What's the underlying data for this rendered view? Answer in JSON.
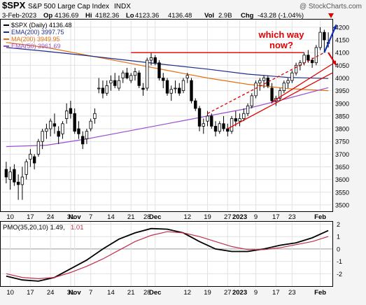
{
  "header": {
    "symbol": "$SPX",
    "name": "S&P 500 Large Cap Index",
    "exchange": "INDX",
    "watermark": "@ StockCharts.com",
    "date": "3-Feb-2023",
    "open_label": "Op",
    "open": "4136.69",
    "high_label": "Hi",
    "high": "4182.36",
    "low_label": "Lo",
    "low": "4123.36",
    "close": "4136.48",
    "vol_label": "Vol",
    "vol": "2.9B",
    "chg_label": "Chg",
    "chg": "-43.28 (-1.04%)"
  },
  "legend": [
    {
      "label": "$SPX (Daily) 4136.48",
      "color": "#000000"
    },
    {
      "label": "EMA(200) 3997.75",
      "color": "#1f2d8a"
    },
    {
      "label": "MA(200) 3949.95",
      "color": "#e07010"
    },
    {
      "label": "EMA(50) 3961.69",
      "color": "#9a4fd0"
    }
  ],
  "annotation": {
    "line1": "which way",
    "line2": "now?",
    "color": "#e00000"
  },
  "colors": {
    "ema200": "#1f2d8a",
    "ma200": "#e07010",
    "ema50": "#9a4fd0",
    "resistance": "#e00000",
    "up": "#ffffff",
    "down": "#000000",
    "pmo": "#000000",
    "signal": "#c0304a",
    "arrow_up": "#1030c0",
    "arrow_down": "#e00000"
  },
  "chart_data": [
    {
      "type": "candlestick",
      "title": "$SPX (Daily)",
      "ylim": [
        3475,
        4230
      ],
      "y_ticks": [
        3500,
        3550,
        3600,
        3650,
        3700,
        3750,
        3800,
        3850,
        3900,
        3950,
        4000,
        4050,
        4100,
        4150,
        4200
      ],
      "x_ticks": [
        {
          "label": "10",
          "index": 1
        },
        {
          "label": "17",
          "index": 6
        },
        {
          "label": "24",
          "index": 11
        },
        {
          "label": "31",
          "index": 16
        },
        {
          "label": "Nov",
          "index": 17
        },
        {
          "label": "7",
          "index": 21
        },
        {
          "label": "14",
          "index": 26
        },
        {
          "label": "21",
          "index": 31
        },
        {
          "label": "28",
          "index": 35
        },
        {
          "label": "Dec",
          "index": 37
        },
        {
          "label": "12",
          "index": 45
        },
        {
          "label": "19",
          "index": 50
        },
        {
          "label": "27",
          "index": 55
        },
        {
          "label": "2023",
          "index": 58
        },
        {
          "label": "9",
          "index": 62
        },
        {
          "label": "17",
          "index": 67
        },
        {
          "label": "23",
          "index": 71
        },
        {
          "label": "Feb",
          "index": 78
        }
      ],
      "n": 81,
      "ohlc": [
        [
          3640,
          3670,
          3585,
          3610
        ],
        [
          3600,
          3650,
          3560,
          3630
        ],
        [
          3640,
          3660,
          3575,
          3590
        ],
        [
          3590,
          3620,
          3520,
          3580
        ],
        [
          3580,
          3650,
          3520,
          3610
        ],
        [
          3620,
          3680,
          3600,
          3670
        ],
        [
          3680,
          3720,
          3650,
          3700
        ],
        [
          3690,
          3700,
          3640,
          3665
        ],
        [
          3700,
          3760,
          3690,
          3750
        ],
        [
          3750,
          3800,
          3720,
          3790
        ],
        [
          3790,
          3820,
          3760,
          3800
        ],
        [
          3800,
          3840,
          3770,
          3830
        ],
        [
          3820,
          3860,
          3780,
          3810
        ],
        [
          3790,
          3810,
          3740,
          3770
        ],
        [
          3780,
          3830,
          3760,
          3820
        ],
        [
          3840,
          3900,
          3820,
          3870
        ],
        [
          3880,
          3910,
          3840,
          3860
        ],
        [
          3860,
          3880,
          3780,
          3790
        ],
        [
          3800,
          3830,
          3760,
          3780
        ],
        [
          3770,
          3790,
          3720,
          3740
        ],
        [
          3760,
          3800,
          3740,
          3790
        ],
        [
          3800,
          3840,
          3790,
          3830
        ],
        [
          3840,
          3880,
          3820,
          3860
        ],
        [
          3960,
          4000,
          3940,
          3960
        ],
        [
          3960,
          3990,
          3920,
          3940
        ],
        [
          3940,
          3990,
          3930,
          3970
        ],
        [
          3980,
          4010,
          3950,
          3990
        ],
        [
          3990,
          4020,
          3960,
          3970
        ],
        [
          3960,
          4010,
          3950,
          3990
        ],
        [
          4000,
          4030,
          3980,
          4020
        ],
        [
          4020,
          4040,
          3995,
          4000
        ],
        [
          3990,
          4020,
          3980,
          4010
        ],
        [
          4010,
          4040,
          3990,
          4025
        ],
        [
          4020,
          4030,
          3960,
          3970
        ],
        [
          3960,
          3980,
          3930,
          3955
        ],
        [
          3960,
          4080,
          3950,
          4070
        ],
        [
          4070,
          4100,
          4050,
          4080
        ],
        [
          4080,
          4090,
          4050,
          4060
        ],
        [
          4060,
          4070,
          3990,
          4000
        ],
        [
          4000,
          4020,
          3960,
          3990
        ],
        [
          3990,
          4000,
          3930,
          3940
        ],
        [
          3940,
          3970,
          3910,
          3955
        ],
        [
          3960,
          3990,
          3940,
          3960
        ],
        [
          3960,
          3980,
          3930,
          3940
        ],
        [
          3950,
          4000,
          3940,
          3990
        ],
        [
          4000,
          4020,
          3980,
          4010
        ],
        [
          3990,
          4000,
          3900,
          3910
        ],
        [
          3910,
          3920,
          3870,
          3880
        ],
        [
          3880,
          3890,
          3790,
          3810
        ],
        [
          3810,
          3840,
          3780,
          3820
        ],
        [
          3830,
          3870,
          3810,
          3850
        ],
        [
          3850,
          3860,
          3800,
          3810
        ],
        [
          3810,
          3830,
          3770,
          3790
        ],
        [
          3790,
          3830,
          3780,
          3820
        ],
        [
          3820,
          3850,
          3790,
          3800
        ],
        [
          3800,
          3820,
          3770,
          3790
        ],
        [
          3790,
          3850,
          3780,
          3840
        ],
        [
          3840,
          3870,
          3810,
          3830
        ],
        [
          3830,
          3860,
          3810,
          3840
        ],
        [
          3840,
          3880,
          3830,
          3860
        ],
        [
          3860,
          3900,
          3850,
          3890
        ],
        [
          3890,
          3940,
          3880,
          3930
        ],
        [
          3930,
          3990,
          3920,
          3980
        ],
        [
          3980,
          4000,
          3950,
          3990
        ],
        [
          3990,
          4010,
          3960,
          4000
        ],
        [
          4000,
          4010,
          3960,
          3970
        ],
        [
          3960,
          3980,
          3900,
          3910
        ],
        [
          3910,
          3930,
          3890,
          3920
        ],
        [
          3920,
          3960,
          3910,
          3950
        ],
        [
          3950,
          3990,
          3940,
          3980
        ],
        [
          3980,
          4000,
          3960,
          3990
        ],
        [
          3990,
          4030,
          3980,
          4020
        ],
        [
          4020,
          4060,
          4010,
          4050
        ],
        [
          4050,
          4070,
          4030,
          4060
        ],
        [
          4060,
          4100,
          4050,
          4090
        ],
        [
          4090,
          4110,
          4060,
          4070
        ],
        [
          4070,
          4080,
          4040,
          4060
        ],
        [
          4060,
          4130,
          4050,
          4120
        ],
        [
          4120,
          4200,
          4110,
          4180
        ],
        [
          4180,
          4190,
          4100,
          4150
        ],
        [
          4140,
          4180,
          4120,
          4136
        ]
      ],
      "ema200": [
        [
          0,
          4120
        ],
        [
          10,
          4105
        ],
        [
          20,
          4088
        ],
        [
          30,
          4070
        ],
        [
          40,
          4052
        ],
        [
          50,
          4035
        ],
        [
          60,
          4015
        ],
        [
          70,
          4002
        ],
        [
          80,
          3998
        ]
      ],
      "ma200": [
        [
          0,
          4140
        ],
        [
          10,
          4120
        ],
        [
          20,
          4090
        ],
        [
          30,
          4060
        ],
        [
          40,
          4030
        ],
        [
          50,
          4000
        ],
        [
          60,
          3975
        ],
        [
          70,
          3958
        ],
        [
          80,
          3950
        ]
      ],
      "ema50": [
        [
          0,
          3730
        ],
        [
          10,
          3735
        ],
        [
          20,
          3760
        ],
        [
          30,
          3790
        ],
        [
          40,
          3820
        ],
        [
          50,
          3850
        ],
        [
          60,
          3880
        ],
        [
          70,
          3920
        ],
        [
          80,
          3962
        ]
      ],
      "resistance_level": 4100,
      "lines": [
        {
          "from": [
            31,
            4100
          ],
          "to": [
            74,
            4100
          ],
          "style": "solid"
        },
        {
          "from": [
            50,
            3860
          ],
          "to": [
            79,
            4100
          ],
          "style": "dashed"
        },
        {
          "from": [
            55,
            3800
          ],
          "to": [
            81,
            4020
          ],
          "style": "solid"
        },
        {
          "from": [
            66,
            3905
          ],
          "to": [
            81,
            4055
          ],
          "style": "solid"
        }
      ],
      "arrows": [
        {
          "from": [
            79,
            4100
          ],
          "to": [
            82,
            4210
          ],
          "color": "up"
        },
        {
          "from": [
            80,
            4100
          ],
          "to": [
            82,
            4050
          ],
          "color": "down"
        }
      ]
    },
    {
      "type": "line",
      "title": "PMO(35,20,10)",
      "pmo_label": "PMO(35,20,10) 1.49,",
      "signal_label": "1.01",
      "ylim": [
        -3,
        2.2
      ],
      "y_ticks": [
        -2,
        -1,
        0,
        1,
        2
      ],
      "series": [
        {
          "name": "PMO",
          "values": [
            [
              0,
              -2.2
            ],
            [
              4,
              -2.5
            ],
            [
              8,
              -2.6
            ],
            [
              12,
              -2.3
            ],
            [
              16,
              -1.6
            ],
            [
              20,
              -0.9
            ],
            [
              24,
              0.0
            ],
            [
              28,
              0.8
            ],
            [
              32,
              1.3
            ],
            [
              36,
              1.65
            ],
            [
              40,
              1.6
            ],
            [
              44,
              1.3
            ],
            [
              48,
              0.6
            ],
            [
              52,
              0.0
            ],
            [
              56,
              -0.2
            ],
            [
              60,
              -0.2
            ],
            [
              64,
              0.0
            ],
            [
              68,
              0.3
            ],
            [
              72,
              0.5
            ],
            [
              76,
              0.9
            ],
            [
              80,
              1.49
            ]
          ]
        },
        {
          "name": "Signal",
          "values": [
            [
              0,
              -2.0
            ],
            [
              4,
              -2.3
            ],
            [
              8,
              -2.4
            ],
            [
              12,
              -2.3
            ],
            [
              16,
              -1.9
            ],
            [
              20,
              -1.4
            ],
            [
              24,
              -0.8
            ],
            [
              28,
              -0.1
            ],
            [
              32,
              0.6
            ],
            [
              36,
              1.1
            ],
            [
              40,
              1.4
            ],
            [
              44,
              1.3
            ],
            [
              48,
              1.0
            ],
            [
              52,
              0.6
            ],
            [
              56,
              0.2
            ],
            [
              60,
              -0.05
            ],
            [
              64,
              -0.05
            ],
            [
              68,
              0.1
            ],
            [
              72,
              0.35
            ],
            [
              76,
              0.6
            ],
            [
              80,
              1.01
            ]
          ]
        }
      ]
    }
  ]
}
